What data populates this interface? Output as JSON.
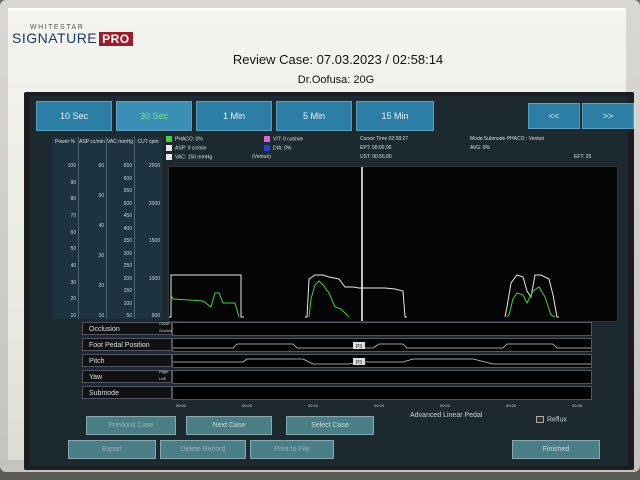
{
  "brand": {
    "line1": "WHITESTAR",
    "line2": "SIGNATURE",
    "pro": "PRO"
  },
  "header": {
    "title": "Review Case: 07.03.2023 / 02:58:14",
    "doctor": "Dr.Oofusa: 20G"
  },
  "time_tabs": [
    {
      "label": "10 Sec",
      "active": false
    },
    {
      "label": "30 Sec",
      "active": true
    },
    {
      "label": "1 Min",
      "active": false
    },
    {
      "label": "5 Min",
      "active": false
    },
    {
      "label": "15 Min",
      "active": false
    }
  ],
  "nav": {
    "prev": "<<",
    "next": ">>"
  },
  "scales": {
    "power": {
      "head": "Power %",
      "ticks": [
        "100",
        "90",
        "80",
        "70",
        "60",
        "50",
        "40",
        "30",
        "20",
        "10"
      ]
    },
    "asp": {
      "head": "ASP cc/min",
      "ticks": [
        "60",
        "50",
        "40",
        "30",
        "20",
        "10"
      ]
    },
    "vac": {
      "head": "VAC mmHg",
      "ticks": [
        "650",
        "600",
        "550",
        "500",
        "450",
        "400",
        "350",
        "300",
        "250",
        "200",
        "150",
        "100",
        "50"
      ]
    },
    "cut": {
      "head": "CUT cpm",
      "ticks": [
        "2500",
        "2000",
        "1500",
        "1000",
        "500"
      ]
    }
  },
  "status": {
    "phaco": "PHACO: 0%",
    "asp": "ASP: 0 cc/min",
    "vac": "VAC: 150 mmHg",
    "vit": "VIT: 0 cut/min",
    "dia": "DIA: 0%",
    "venturi": "(Venturi)",
    "cursor_time": "Cursor Time 02:58:27",
    "ept": "EPT: 00:00.00",
    "ust": "UST: 00:56.80",
    "mode": "Mode:Submode PHACO : Venturi",
    "avge": "AVG: 8%",
    "eft": "EFT: 25"
  },
  "colors": {
    "phaco": "#3fd13f",
    "asp": "#e8e8e8",
    "vac": "#e8e8e8",
    "vit": "#d36ad3",
    "dia": "#2840d8"
  },
  "tracks": [
    {
      "label": "Occlusion",
      "side_top": "CASE",
      "side_bottom": "Occluded"
    },
    {
      "label": "Foot Pedal Position",
      "side_top": "",
      "side_bottom": ""
    },
    {
      "label": "Pitch",
      "side_top": "",
      "side_bottom": ""
    },
    {
      "label": "Yaw",
      "side_top": "Right",
      "side_bottom": "Left"
    },
    {
      "label": "Submode",
      "side_top": "",
      "side_bottom": ""
    }
  ],
  "x_ticks": [
    "00:00",
    "00:05",
    "00:10",
    "00:15",
    "00:20",
    "00:25",
    "00:30"
  ],
  "pedal_markers": [
    "P3",
    "P3"
  ],
  "buttons": {
    "previous_case": "Previous Case",
    "next_case": "Next Case",
    "select_case": "Select Case",
    "export": "Export",
    "delete_record": "Delete Record",
    "print_to_file": "Print to File",
    "finished": "Finished"
  },
  "pedal_mode": "Advanced Linear Pedal",
  "reflux": "Reflux"
}
